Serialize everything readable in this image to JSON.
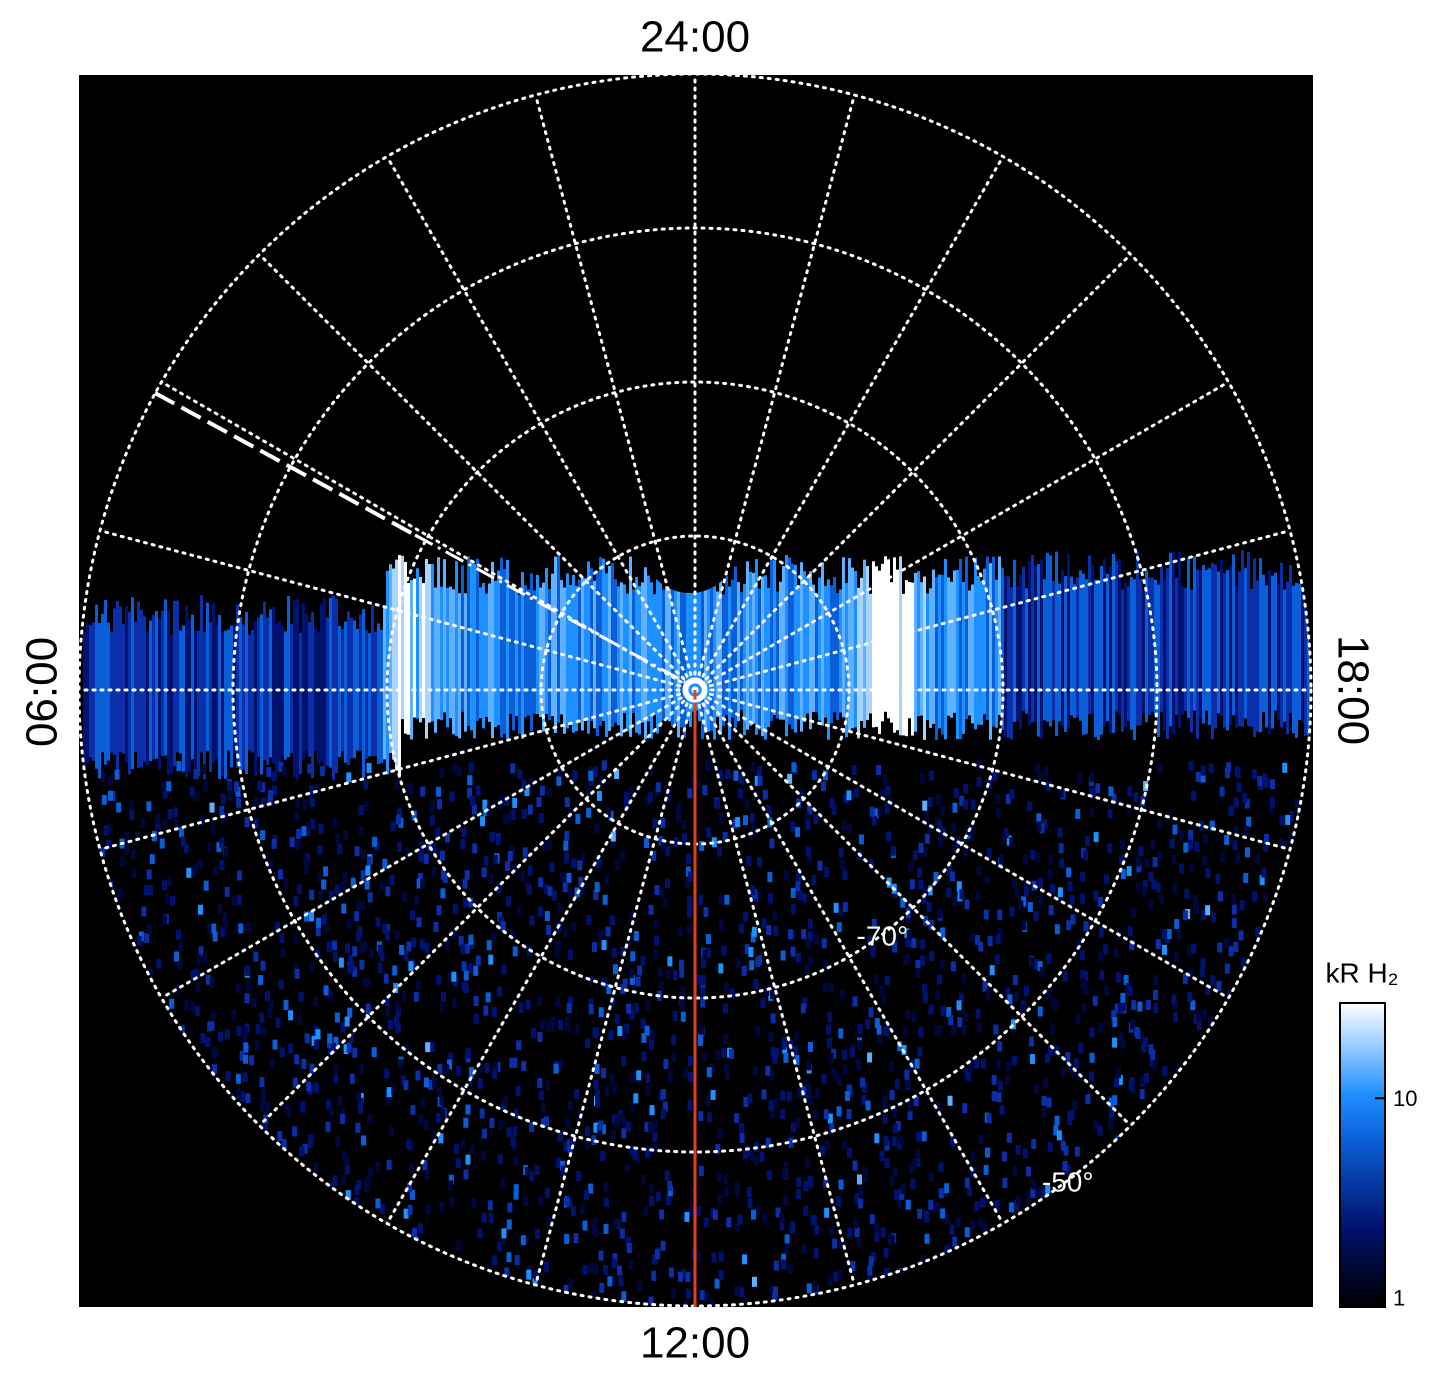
{
  "chart_data": {
    "type": "polar-image",
    "local_time_labels": [
      "24:00",
      "06:00",
      "12:00",
      "18:00"
    ],
    "rlim": [
      -90,
      -50
    ],
    "rticks": [
      {
        "value": -80,
        "label": null
      },
      {
        "value": -70,
        "label": "-70°"
      },
      {
        "value": -60,
        "label": null
      },
      {
        "value": -50,
        "label": "-50°"
      }
    ],
    "meridian_count": 24,
    "colorbar": {
      "label": "kR H₂",
      "scale": "log",
      "clim": [
        0.9,
        30
      ],
      "ticks": [
        1,
        10
      ]
    }
  }
}
